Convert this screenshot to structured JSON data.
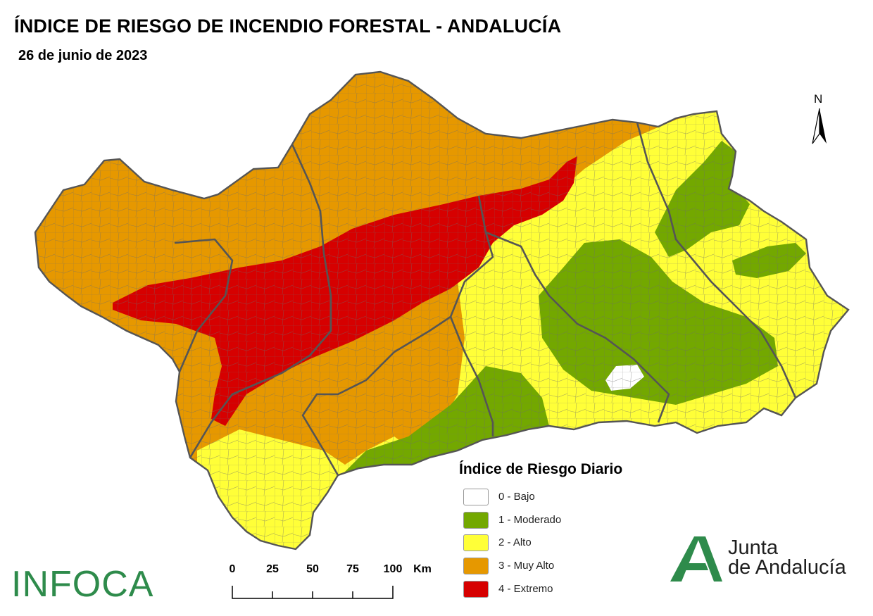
{
  "header": {
    "title": "ÍNDICE DE RIESGO DE INCENDIO FORESTAL - ANDALUCÍA",
    "date": "26 de junio de 2023"
  },
  "map": {
    "north_label": "N",
    "colors": {
      "bajo": "#ffffff",
      "moderado": "#73a800",
      "alto": "#ffff38",
      "muy_alto": "#e69800",
      "extremo": "#d60000",
      "boundary": "#555555"
    }
  },
  "legend": {
    "title": "Índice de Riesgo Diario",
    "items": [
      {
        "label": "0 - Bajo",
        "color": "#ffffff"
      },
      {
        "label": "1 - Moderado",
        "color": "#73a800"
      },
      {
        "label": "2 - Alto",
        "color": "#ffff38"
      },
      {
        "label": "3 - Muy Alto",
        "color": "#e69800"
      },
      {
        "label": "4 - Extremo",
        "color": "#d60000"
      }
    ]
  },
  "scale": {
    "ticks": [
      "0",
      "25",
      "50",
      "75",
      "100"
    ],
    "unit": "Km"
  },
  "logos": {
    "infoca": "INFOCA",
    "junta_line1": "Junta",
    "junta_line2": "de Andalucía",
    "infoca_color": "#2e8b4b",
    "junta_color": "#1e1e1e"
  }
}
